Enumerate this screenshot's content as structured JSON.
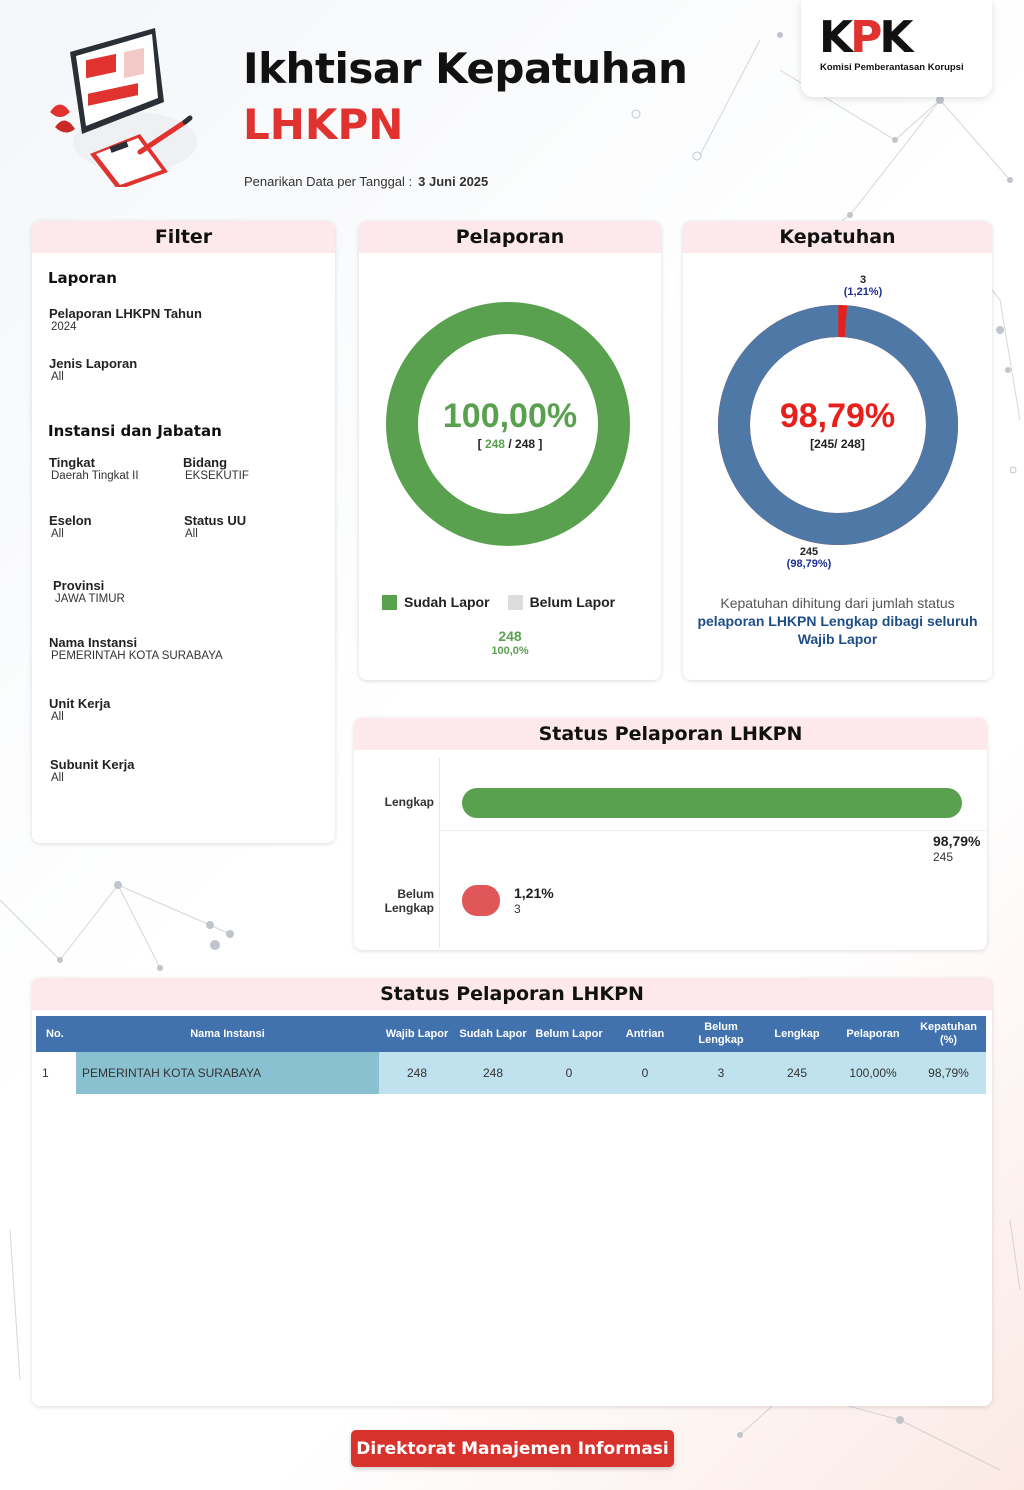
{
  "header": {
    "title_line1": "Ikhtisar Kepatuhan",
    "title_line2": "LHKPN",
    "date_label": "Penarikan Data per Tanggal :",
    "date_value": "3 Juni 2025"
  },
  "logo": {
    "text_k": "K",
    "text_p": "P",
    "text_k2": "K",
    "subtitle": "Komisi Pemberantasan Korupsi"
  },
  "filter": {
    "title": "Filter",
    "section_laporan": "Laporan",
    "tahun_label": "Pelaporan LHKPN Tahun",
    "tahun_value": "2024",
    "jenis_label": "Jenis Laporan",
    "jenis_value": "All",
    "section_instansi": "Instansi dan Jabatan",
    "tingkat_label": "Tingkat",
    "tingkat_value": "Daerah Tingkat II",
    "bidang_label": "Bidang",
    "bidang_value": "EKSEKUTIF",
    "eselon_label": "Eselon",
    "eselon_value": "All",
    "statusuu_label": "Status UU",
    "statusuu_value": "All",
    "provinsi_label": "Provinsi",
    "provinsi_value": "JAWA TIMUR",
    "instansi_label": "Nama Instansi",
    "instansi_value": "PEMERINTAH KOTA SURABAYA",
    "unit_label": "Unit Kerja",
    "unit_value": "All",
    "subunit_label": "Subunit Kerja",
    "subunit_value": "All"
  },
  "pelaporan": {
    "title": "Pelaporan",
    "percent": "100,00%",
    "bracket_open": "[",
    "sudah": "248",
    "sep": "/",
    "total": "248",
    "bracket_close": "]",
    "fraction": 1.0,
    "legend_sudah": "Sudah Lapor",
    "legend_belum": "Belum Lapor",
    "legend_count": "248",
    "legend_pct": "100,0%",
    "color_sudah": "#59a14f",
    "color_belum": "#dddddd"
  },
  "kepatuhan": {
    "title": "Kepatuhan",
    "percent": "98,79%",
    "fraction_text": "[245/ 248]",
    "fraction": 0.9879,
    "small_count": "3",
    "small_pct": "(1,21%)",
    "big_count": "245",
    "big_pct": "(98,79%)",
    "note_plain": "Kepatuhan dihitung dari jumlah status",
    "note_bold": "pelaporan LHKPN Lengkap dibagi seluruh Wajib Lapor",
    "color_main": "#4e79a7",
    "color_rest": "#e8201c"
  },
  "status_chart": {
    "title": "Status Pelaporan LHKPN",
    "lengkap_label": "Lengkap",
    "lengkap_pct": "98,79%",
    "lengkap_count": "245",
    "belum_label_1": "Belum",
    "belum_label_2": "Lengkap",
    "belum_pct": "1,21%",
    "belum_count": "3"
  },
  "chart_data": {
    "type": "bar",
    "title": "Status Pelaporan LHKPN",
    "categories": [
      "Lengkap",
      "Belum Lengkap"
    ],
    "values": [
      245,
      3
    ],
    "percent": [
      98.79,
      1.21
    ]
  },
  "table": {
    "title": "Status Pelaporan LHKPN",
    "headers": [
      "No.",
      "Nama Instansi",
      "Wajib Lapor",
      "Sudah Lapor",
      "Belum Lapor",
      "Antrian",
      "Belum Lengkap",
      "Lengkap",
      "Pelaporan",
      "Kepatuhan (%)"
    ],
    "rows": [
      [
        "1",
        "PEMERINTAH KOTA SURABAYA",
        "248",
        "248",
        "0",
        "0",
        "3",
        "245",
        "100,00%",
        "98,79%"
      ]
    ]
  },
  "footer": {
    "button_label": "Direktorat Manajemen Informasi"
  }
}
